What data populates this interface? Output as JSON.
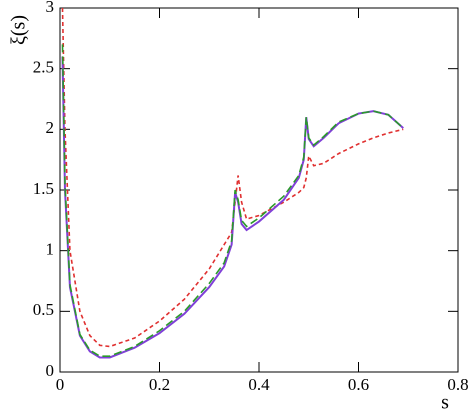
{
  "chart_data": {
    "type": "line",
    "x_label": "s",
    "y_label": "ξ(s)",
    "x": [
      0.005,
      0.01,
      0.02,
      0.04,
      0.06,
      0.08,
      0.1,
      0.15,
      0.2,
      0.25,
      0.3,
      0.33,
      0.345,
      0.352,
      0.358,
      0.365,
      0.375,
      0.4,
      0.45,
      0.48,
      0.49,
      0.495,
      0.5,
      0.51,
      0.53,
      0.56,
      0.6,
      0.63,
      0.66,
      0.69
    ],
    "series": [
      {
        "color": "#e03030",
        "dash": "4,3",
        "values": [
          3.0,
          2.0,
          1.0,
          0.5,
          0.3,
          0.22,
          0.21,
          0.28,
          0.42,
          0.6,
          0.85,
          1.05,
          1.15,
          1.4,
          1.62,
          1.4,
          1.26,
          1.29,
          1.4,
          1.48,
          1.52,
          1.6,
          1.78,
          1.7,
          1.72,
          1.8,
          1.88,
          1.93,
          1.97,
          2.0
        ]
      },
      {
        "color": "#8040d8",
        "dash": "none",
        "values": [
          2.6,
          1.5,
          0.7,
          0.3,
          0.17,
          0.12,
          0.12,
          0.2,
          0.32,
          0.48,
          0.7,
          0.87,
          1.05,
          1.48,
          1.4,
          1.22,
          1.17,
          1.24,
          1.42,
          1.6,
          1.75,
          2.1,
          1.92,
          1.86,
          1.93,
          2.05,
          2.13,
          2.15,
          2.12,
          2.01
        ]
      },
      {
        "color": "#2a9a2a",
        "dash": "8,4",
        "values": [
          2.7,
          1.55,
          0.72,
          0.31,
          0.18,
          0.13,
          0.13,
          0.21,
          0.34,
          0.5,
          0.73,
          0.9,
          1.08,
          1.5,
          1.42,
          1.25,
          1.2,
          1.27,
          1.45,
          1.62,
          1.77,
          2.1,
          1.93,
          1.87,
          1.94,
          2.06,
          2.13,
          2.15,
          2.12,
          2.01
        ]
      }
    ],
    "xlim": [
      0,
      0.8
    ],
    "xticks": [
      0,
      0.2,
      0.4,
      0.6,
      0.8
    ],
    "ylim": [
      0,
      3
    ],
    "yticks": [
      0,
      0.5,
      1,
      1.5,
      2,
      2.5,
      3
    ],
    "grid": false
  }
}
